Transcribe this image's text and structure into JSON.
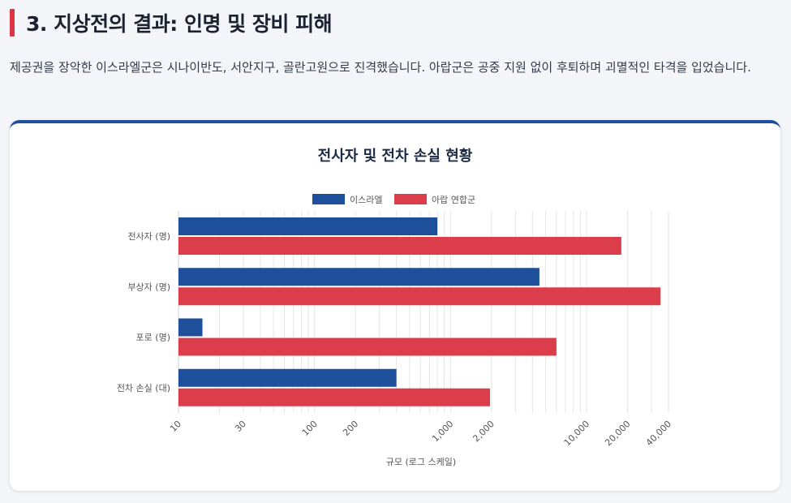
{
  "section": {
    "title": "3. 지상전의 결과: 인명 및 장비 피해",
    "description": "제공권을 장악한 이스라엘군은 시나이반도, 서안지구, 골란고원으로 진격했습니다. 아랍군은 공중 지원 없이 후퇴하며 괴멸적인 타격을 입었습니다."
  },
  "colors": {
    "israel": "#1e4f9a",
    "arab": "#dc3d4a",
    "accent": "#dc3545",
    "card_border": "#1e4f9a"
  },
  "chart_data": {
    "type": "bar",
    "orientation": "horizontal",
    "title": "전사자 및 전차 손실 현황",
    "categories": [
      "전사자 (명)",
      "부상자 (명)",
      "포로 (명)",
      "전차 손실 (대)"
    ],
    "series": [
      {
        "name": "이스라엘",
        "values": [
          800,
          4500,
          15,
          400
        ]
      },
      {
        "name": "아랍 연합군",
        "values": [
          18000,
          35000,
          6000,
          1950
        ]
      }
    ],
    "xlabel": "규모 (로그 스케일)",
    "x_scale": "log",
    "xlim": [
      10,
      40000
    ],
    "x_ticks": [
      10,
      30,
      100,
      200,
      1000,
      2000,
      10000,
      20000,
      40000
    ],
    "x_tick_labels": [
      "10",
      "30",
      "100",
      "200",
      "1,000",
      "2,000",
      "10,000",
      "20,000",
      "40,000"
    ],
    "legend_position": "top",
    "grid": true
  }
}
